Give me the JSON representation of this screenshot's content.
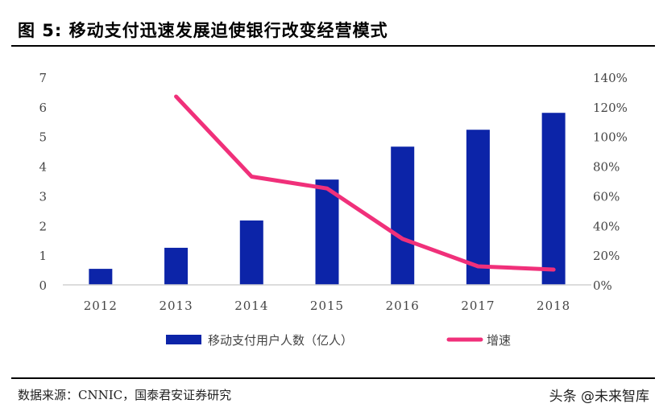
{
  "title": "图  5:  移动支付迅速发展迫使银行改变经营模式",
  "source": "数据来源：CNNIC，国泰君安证券研究",
  "watermark": "头条 @未来智库",
  "chart_data": {
    "type": "bar+line",
    "categories": [
      "2012",
      "2013",
      "2014",
      "2015",
      "2016",
      "2017",
      "2018"
    ],
    "series": [
      {
        "name": "移动支付用户人数（亿人）",
        "type": "bar",
        "axis": "left",
        "color": "#0c24a8",
        "values": [
          0.54,
          1.25,
          2.17,
          3.55,
          4.66,
          5.23,
          5.8
        ]
      },
      {
        "name": "增速",
        "type": "line",
        "axis": "right",
        "color": "#f0307a",
        "values": [
          null,
          127,
          73,
          65,
          31,
          12.5,
          10.3
        ]
      }
    ],
    "left_axis": {
      "ylim": [
        0,
        7
      ],
      "ticks": [
        "0",
        "1",
        "2",
        "3",
        "4",
        "5",
        "6",
        "7"
      ]
    },
    "right_axis": {
      "ylim": [
        0,
        140
      ],
      "ticks": [
        "0%",
        "20%",
        "40%",
        "60%",
        "80%",
        "100%",
        "120%",
        "140%"
      ]
    },
    "grid": false,
    "legend": "bottom"
  }
}
